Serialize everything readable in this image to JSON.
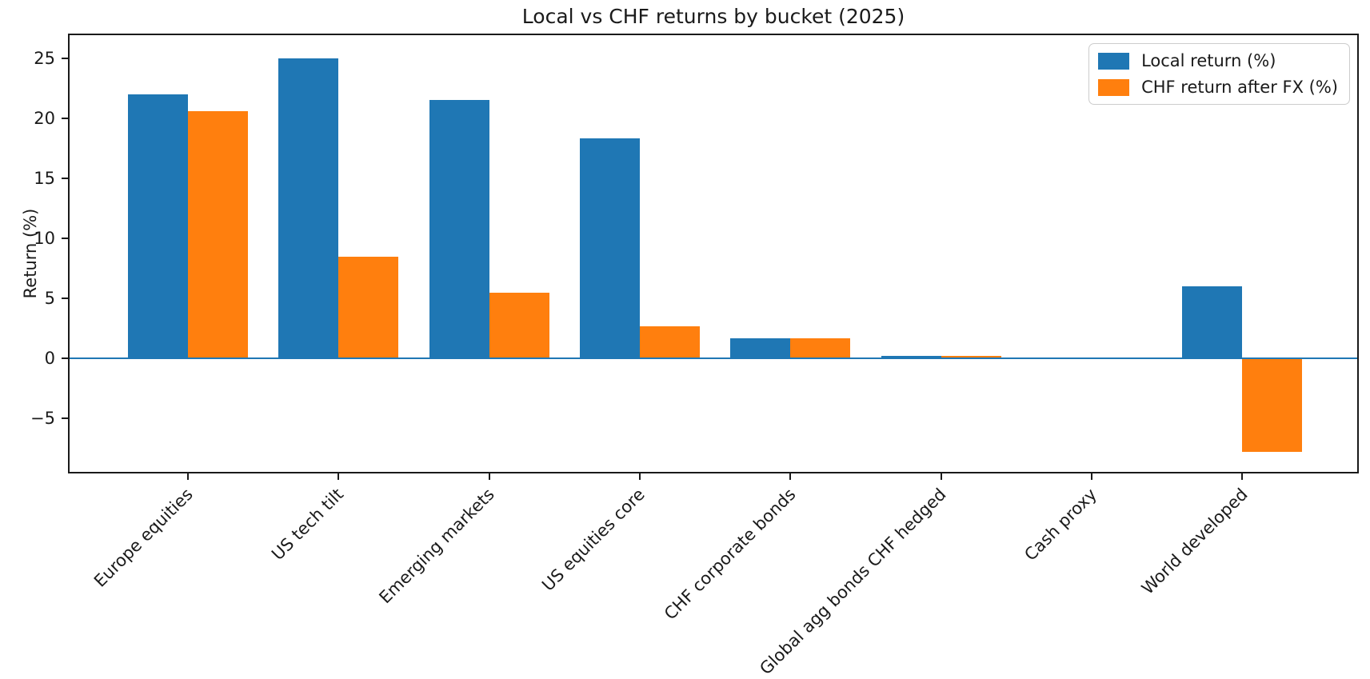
{
  "chart_data": {
    "type": "bar",
    "title": "Local vs CHF returns by bucket (2025)",
    "ylabel": "Return (%)",
    "xlabel": "",
    "categories": [
      "Europe equities",
      "US tech tilt",
      "Emerging markets",
      "US equities core",
      "CHF corporate bonds",
      "Global agg bonds CHF hedged",
      "Cash proxy",
      "World developed"
    ],
    "series": [
      {
        "name": "Local return (%)",
        "color": "#1f77b4",
        "values": [
          22.0,
          25.0,
          21.5,
          18.3,
          1.7,
          0.2,
          0.0,
          6.0
        ]
      },
      {
        "name": "CHF return after FX (%)",
        "color": "#ff7f0e",
        "values": [
          20.6,
          8.5,
          5.5,
          2.7,
          1.7,
          0.2,
          0.0,
          -7.8
        ]
      }
    ],
    "ylim": [
      -9.7,
      26.9
    ],
    "yticks": [
      25,
      20,
      15,
      10,
      5,
      0,
      -5
    ],
    "grid": false,
    "legend_position": "upper right",
    "zero_line_color": "#1f77b4",
    "axis_color": "#1a1a1a",
    "background_color": "#ffffff"
  }
}
